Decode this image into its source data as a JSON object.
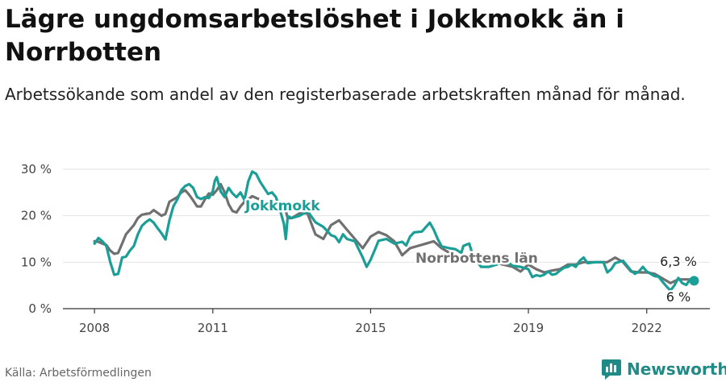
{
  "title": "Lägre ungdomsarbetslöshet i Jokkmokk än i Norrbotten",
  "subtitle": "Arbetssökande som andel av den registerbaserade arbetskraften månad för månad.",
  "source": "Källa: Arbetsförmedlingen",
  "brand": "Newsworthy",
  "colors": {
    "jokkmokk": "#1a9e96",
    "norrbotten": "#707070",
    "grid": "#e2e2e2"
  },
  "chart_data": {
    "type": "line",
    "xlim": [
      2007.2,
      2023.6
    ],
    "ylim": [
      0,
      30
    ],
    "yticks": [
      0,
      10,
      20,
      30
    ],
    "yticklabels": [
      "0 %",
      "10 %",
      "20 %",
      "30 %"
    ],
    "xticks": [
      2008,
      2011,
      2015,
      2019,
      2022
    ],
    "xticklabels": [
      "2008",
      "2011",
      "2015",
      "2019",
      "2022"
    ],
    "grid": true,
    "series": [
      {
        "name": "Jokkmokk",
        "color": "#1a9e96",
        "end_label": "6 %",
        "points": [
          [
            2008.0,
            14.0
          ],
          [
            2008.1,
            15.2
          ],
          [
            2008.2,
            14.5
          ],
          [
            2008.3,
            13.5
          ],
          [
            2008.4,
            10.0
          ],
          [
            2008.5,
            7.3
          ],
          [
            2008.6,
            7.5
          ],
          [
            2008.7,
            11.0
          ],
          [
            2008.8,
            11.2
          ],
          [
            2008.9,
            12.5
          ],
          [
            2009.0,
            13.5
          ],
          [
            2009.1,
            16.0
          ],
          [
            2009.2,
            17.8
          ],
          [
            2009.3,
            18.6
          ],
          [
            2009.4,
            19.2
          ],
          [
            2009.5,
            18.5
          ],
          [
            2009.6,
            17.3
          ],
          [
            2009.7,
            16.2
          ],
          [
            2009.8,
            14.9
          ],
          [
            2009.9,
            19.0
          ],
          [
            2010.0,
            22.0
          ],
          [
            2010.1,
            23.5
          ],
          [
            2010.2,
            25.5
          ],
          [
            2010.3,
            26.4
          ],
          [
            2010.4,
            26.8
          ],
          [
            2010.5,
            26.0
          ],
          [
            2010.6,
            24.0
          ],
          [
            2010.7,
            23.6
          ],
          [
            2010.8,
            24.0
          ],
          [
            2010.9,
            23.8
          ],
          [
            2011.0,
            25.3
          ],
          [
            2011.05,
            27.5
          ],
          [
            2011.1,
            28.3
          ],
          [
            2011.2,
            25.2
          ],
          [
            2011.3,
            24.0
          ],
          [
            2011.4,
            26.0
          ],
          [
            2011.5,
            24.8
          ],
          [
            2011.6,
            24.0
          ],
          [
            2011.7,
            25.0
          ],
          [
            2011.8,
            23.4
          ],
          [
            2011.9,
            27.4
          ],
          [
            2012.0,
            29.5
          ],
          [
            2012.1,
            29.0
          ],
          [
            2012.2,
            27.3
          ],
          [
            2012.3,
            26.0
          ],
          [
            2012.4,
            24.7
          ],
          [
            2012.5,
            25.0
          ],
          [
            2012.6,
            24.0
          ],
          [
            2012.7,
            21.3
          ],
          [
            2012.8,
            18.3
          ],
          [
            2012.85,
            15.0
          ],
          [
            2012.9,
            19.9
          ],
          [
            2013.0,
            19.5
          ],
          [
            2013.2,
            20.0
          ],
          [
            2013.4,
            21.0
          ],
          [
            2013.6,
            18.6
          ],
          [
            2013.8,
            17.6
          ],
          [
            2014.0,
            15.8
          ],
          [
            2014.1,
            15.5
          ],
          [
            2014.2,
            14.3
          ],
          [
            2014.3,
            16.0
          ],
          [
            2014.4,
            15.0
          ],
          [
            2014.6,
            14.5
          ],
          [
            2014.8,
            11.0
          ],
          [
            2014.9,
            9.0
          ],
          [
            2015.0,
            10.5
          ],
          [
            2015.1,
            12.5
          ],
          [
            2015.2,
            14.6
          ],
          [
            2015.4,
            15.0
          ],
          [
            2015.6,
            14.0
          ],
          [
            2015.8,
            14.4
          ],
          [
            2015.9,
            13.6
          ],
          [
            2016.0,
            15.5
          ],
          [
            2016.1,
            16.4
          ],
          [
            2016.3,
            16.6
          ],
          [
            2016.5,
            18.5
          ],
          [
            2016.6,
            17.0
          ],
          [
            2016.7,
            15.0
          ],
          [
            2016.8,
            13.4
          ],
          [
            2017.0,
            13.0
          ],
          [
            2017.15,
            12.8
          ],
          [
            2017.3,
            12.0
          ],
          [
            2017.35,
            13.5
          ],
          [
            2017.5,
            14.0
          ],
          [
            2017.6,
            11.2
          ],
          [
            2017.8,
            9.0
          ],
          [
            2018.0,
            9.0
          ],
          [
            2018.2,
            9.5
          ],
          [
            2018.4,
            10.5
          ],
          [
            2018.6,
            9.2
          ],
          [
            2018.8,
            9.0
          ],
          [
            2019.0,
            8.5
          ],
          [
            2019.1,
            6.8
          ],
          [
            2019.2,
            7.2
          ],
          [
            2019.3,
            7.0
          ],
          [
            2019.4,
            7.3
          ],
          [
            2019.5,
            8.0
          ],
          [
            2019.6,
            7.3
          ],
          [
            2019.7,
            7.5
          ],
          [
            2019.8,
            8.2
          ],
          [
            2019.9,
            8.8
          ],
          [
            2020.0,
            9.0
          ],
          [
            2020.1,
            9.5
          ],
          [
            2020.2,
            9.0
          ],
          [
            2020.3,
            10.3
          ],
          [
            2020.4,
            11.0
          ],
          [
            2020.5,
            9.8
          ],
          [
            2020.7,
            10.0
          ],
          [
            2020.9,
            10.0
          ],
          [
            2021.0,
            7.8
          ],
          [
            2021.1,
            8.5
          ],
          [
            2021.2,
            9.8
          ],
          [
            2021.4,
            10.3
          ],
          [
            2021.6,
            8.2
          ],
          [
            2021.7,
            7.5
          ],
          [
            2021.8,
            8.0
          ],
          [
            2021.9,
            9.0
          ],
          [
            2022.0,
            8.0
          ],
          [
            2022.1,
            7.5
          ],
          [
            2022.2,
            7.0
          ],
          [
            2022.3,
            6.9
          ],
          [
            2022.4,
            5.8
          ],
          [
            2022.5,
            4.8
          ],
          [
            2022.6,
            3.9
          ],
          [
            2022.7,
            5.0
          ],
          [
            2022.8,
            6.6
          ],
          [
            2022.9,
            5.5
          ],
          [
            2023.0,
            5.1
          ],
          [
            2023.1,
            6.3
          ],
          [
            2023.2,
            6.0
          ]
        ]
      },
      {
        "name": "Norrbottens län",
        "color": "#707070",
        "end_label": "6,3 %",
        "points": [
          [
            2008.0,
            14.5
          ],
          [
            2008.1,
            14.4
          ],
          [
            2008.2,
            14.0
          ],
          [
            2008.3,
            13.7
          ],
          [
            2008.4,
            12.5
          ],
          [
            2008.5,
            11.8
          ],
          [
            2008.6,
            12.0
          ],
          [
            2008.7,
            14.0
          ],
          [
            2008.8,
            16.0
          ],
          [
            2008.9,
            17.0
          ],
          [
            2009.0,
            18.0
          ],
          [
            2009.1,
            19.5
          ],
          [
            2009.2,
            20.2
          ],
          [
            2009.3,
            20.4
          ],
          [
            2009.4,
            20.5
          ],
          [
            2009.5,
            21.2
          ],
          [
            2009.6,
            20.6
          ],
          [
            2009.7,
            20.0
          ],
          [
            2009.8,
            20.4
          ],
          [
            2009.9,
            23.0
          ],
          [
            2010.0,
            23.5
          ],
          [
            2010.1,
            24.0
          ],
          [
            2010.2,
            25.0
          ],
          [
            2010.3,
            25.5
          ],
          [
            2010.4,
            24.5
          ],
          [
            2010.5,
            23.3
          ],
          [
            2010.6,
            22.0
          ],
          [
            2010.7,
            22.0
          ],
          [
            2010.8,
            23.5
          ],
          [
            2010.9,
            24.8
          ],
          [
            2011.0,
            24.5
          ],
          [
            2011.1,
            25.5
          ],
          [
            2011.2,
            26.8
          ],
          [
            2011.3,
            25.0
          ],
          [
            2011.4,
            22.5
          ],
          [
            2011.5,
            21.0
          ],
          [
            2011.6,
            20.7
          ],
          [
            2011.7,
            22.0
          ],
          [
            2011.8,
            23.0
          ],
          [
            2011.9,
            23.5
          ],
          [
            2012.0,
            24.2
          ],
          [
            2012.85,
            21.0
          ],
          [
            2012.9,
            19.5
          ],
          [
            2013.0,
            19.5
          ],
          [
            2013.2,
            20.5
          ],
          [
            2013.4,
            20.5
          ],
          [
            2013.6,
            16.0
          ],
          [
            2013.8,
            15.0
          ],
          [
            2014.0,
            18.0
          ],
          [
            2014.2,
            19.0
          ],
          [
            2014.4,
            17.0
          ],
          [
            2014.6,
            15.0
          ],
          [
            2014.8,
            13.0
          ],
          [
            2015.0,
            15.5
          ],
          [
            2015.2,
            16.5
          ],
          [
            2015.4,
            15.8
          ],
          [
            2015.6,
            14.5
          ],
          [
            2015.8,
            11.5
          ],
          [
            2016.0,
            13.0
          ],
          [
            2016.2,
            13.5
          ],
          [
            2016.4,
            14.0
          ],
          [
            2016.6,
            14.5
          ],
          [
            2016.8,
            13.0
          ],
          [
            2017.0,
            12.0
          ],
          [
            2017.2,
            11.0
          ],
          [
            2017.4,
            10.5
          ],
          [
            2017.6,
            11.0
          ],
          [
            2018.6,
            9.0
          ],
          [
            2018.8,
            8.0
          ],
          [
            2019.0,
            9.5
          ],
          [
            2019.2,
            8.5
          ],
          [
            2019.4,
            7.8
          ],
          [
            2019.6,
            8.2
          ],
          [
            2019.8,
            8.5
          ],
          [
            2020.0,
            9.5
          ],
          [
            2020.2,
            9.5
          ],
          [
            2020.4,
            10.0
          ],
          [
            2020.6,
            10.0
          ],
          [
            2020.8,
            10.0
          ],
          [
            2021.0,
            10.0
          ],
          [
            2021.2,
            11.0
          ],
          [
            2021.4,
            10.0
          ],
          [
            2021.6,
            8.0
          ],
          [
            2021.8,
            7.8
          ],
          [
            2022.0,
            7.8
          ],
          [
            2022.2,
            7.5
          ],
          [
            2022.4,
            6.5
          ],
          [
            2022.6,
            5.5
          ],
          [
            2022.8,
            6.3
          ],
          [
            2023.0,
            6.3
          ],
          [
            2023.2,
            6.3
          ]
        ]
      }
    ]
  }
}
